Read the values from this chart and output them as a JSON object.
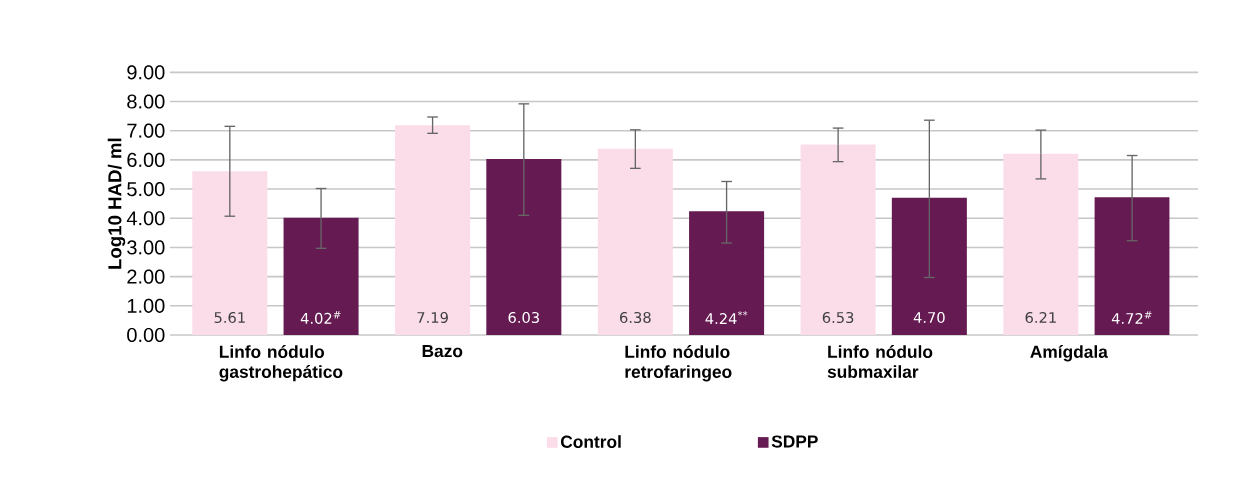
{
  "chart_data": {
    "type": "bar",
    "ylabel": "Log10 HAD/ ml",
    "categories": [
      "Linfo nódulo gastrohepático",
      "Bazo",
      "Linfo nódulo retrofaringeo",
      "Linfo nódulo submaxilar",
      "Amígdala"
    ],
    "series": [
      {
        "name": "Control",
        "color": "#fbdce9",
        "values": [
          5.61,
          7.19,
          6.38,
          6.53,
          6.21
        ],
        "value_labels": [
          "5.61",
          "7.19",
          "6.38",
          "6.53",
          "6.21"
        ],
        "errors": [
          [
            4.07,
            7.15
          ],
          [
            6.91,
            7.47
          ],
          [
            5.71,
            7.03
          ],
          [
            5.94,
            7.09
          ],
          [
            5.35,
            7.02
          ]
        ]
      },
      {
        "name": "SDPP",
        "color": "#651a52",
        "values": [
          4.02,
          6.03,
          4.24,
          4.7,
          4.72
        ],
        "value_labels": [
          "4.02$^{#}$",
          "6.03",
          "4.24$^{**}$",
          "4.70",
          "4.72$^{#}$"
        ],
        "errors": [
          [
            2.97,
            5.02
          ],
          [
            4.1,
            7.92
          ],
          [
            3.15,
            5.26
          ],
          [
            1.97,
            7.36
          ],
          [
            3.23,
            6.15
          ]
        ]
      }
    ],
    "ylim": [
      0,
      9
    ],
    "yticks": [
      {
        "value": 0,
        "label": "0.00"
      },
      {
        "value": 1,
        "label": "1.00"
      },
      {
        "value": 2,
        "label": "2.00"
      },
      {
        "value": 3,
        "label": "3.00"
      },
      {
        "value": 4,
        "label": "4.00"
      },
      {
        "value": 5,
        "label": "5.00"
      },
      {
        "value": 6,
        "label": "6.00"
      },
      {
        "value": 7,
        "label": "7.00"
      },
      {
        "value": 8,
        "label": "8.00"
      },
      {
        "value": 9,
        "label": "9.00"
      }
    ],
    "grid": "y",
    "legend": "bottom"
  }
}
